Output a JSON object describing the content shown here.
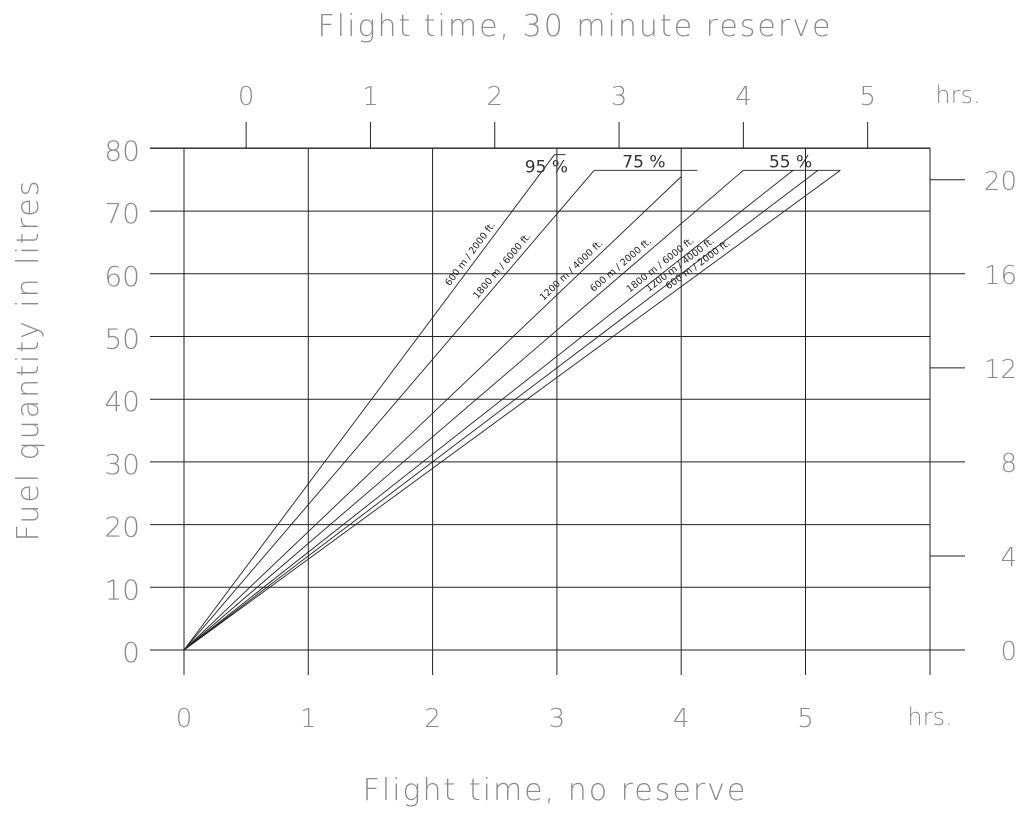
{
  "chart_data": {
    "type": "line",
    "title": "Flight time, 30 minute reserve",
    "xlabel": "Flight time, no reserve",
    "ylabel": "Fuel quantity in litres",
    "x_unit": "hrs.",
    "top_unit": "hrs.",
    "xlim": [
      0,
      6
    ],
    "ylim": [
      0,
      80
    ],
    "x_ticks": [
      "0",
      "1",
      "2",
      "3",
      "4",
      "5"
    ],
    "y_ticks": [
      "0",
      "10",
      "20",
      "30",
      "40",
      "50",
      "60",
      "70",
      "80"
    ],
    "top_ticks": [
      "0",
      "1",
      "2",
      "3",
      "4",
      "5"
    ],
    "top_tick_values": [
      0.5,
      1.5,
      2.5,
      3.5,
      4.5,
      5.5
    ],
    "right_ticks": [
      "0",
      "4",
      "8",
      "12",
      "16",
      "20"
    ],
    "right_tick_values": [
      0,
      15,
      30,
      45,
      60,
      75
    ],
    "grid": true,
    "series": [
      {
        "name": "600 m / 2000 ft.",
        "x": [
          0,
          2.98
        ],
        "y": [
          0,
          79
        ]
      },
      {
        "name": "1800 m / 6000 ft.",
        "x": [
          0,
          3.3
        ],
        "y": [
          0,
          76.5
        ]
      },
      {
        "name": "1200 m / 4000 ft.",
        "x": [
          0,
          4.0
        ],
        "y": [
          0,
          75.5
        ]
      },
      {
        "name": "600 m / 2000 ft.",
        "x": [
          0,
          4.5
        ],
        "y": [
          0,
          76.5
        ]
      },
      {
        "name": "1800 m / 6000 ft.",
        "x": [
          0,
          4.9
        ],
        "y": [
          0,
          76.5
        ]
      },
      {
        "name": "1200 m / 4000 ft.",
        "x": [
          0,
          5.1
        ],
        "y": [
          0,
          76.5
        ]
      },
      {
        "name": "600 m / 2000 ft.",
        "x": [
          0,
          5.28
        ],
        "y": [
          0,
          76.5
        ]
      }
    ],
    "power_labels": [
      {
        "text": "95 %"
      },
      {
        "text": "75 %"
      },
      {
        "text": "55 %"
      }
    ]
  }
}
